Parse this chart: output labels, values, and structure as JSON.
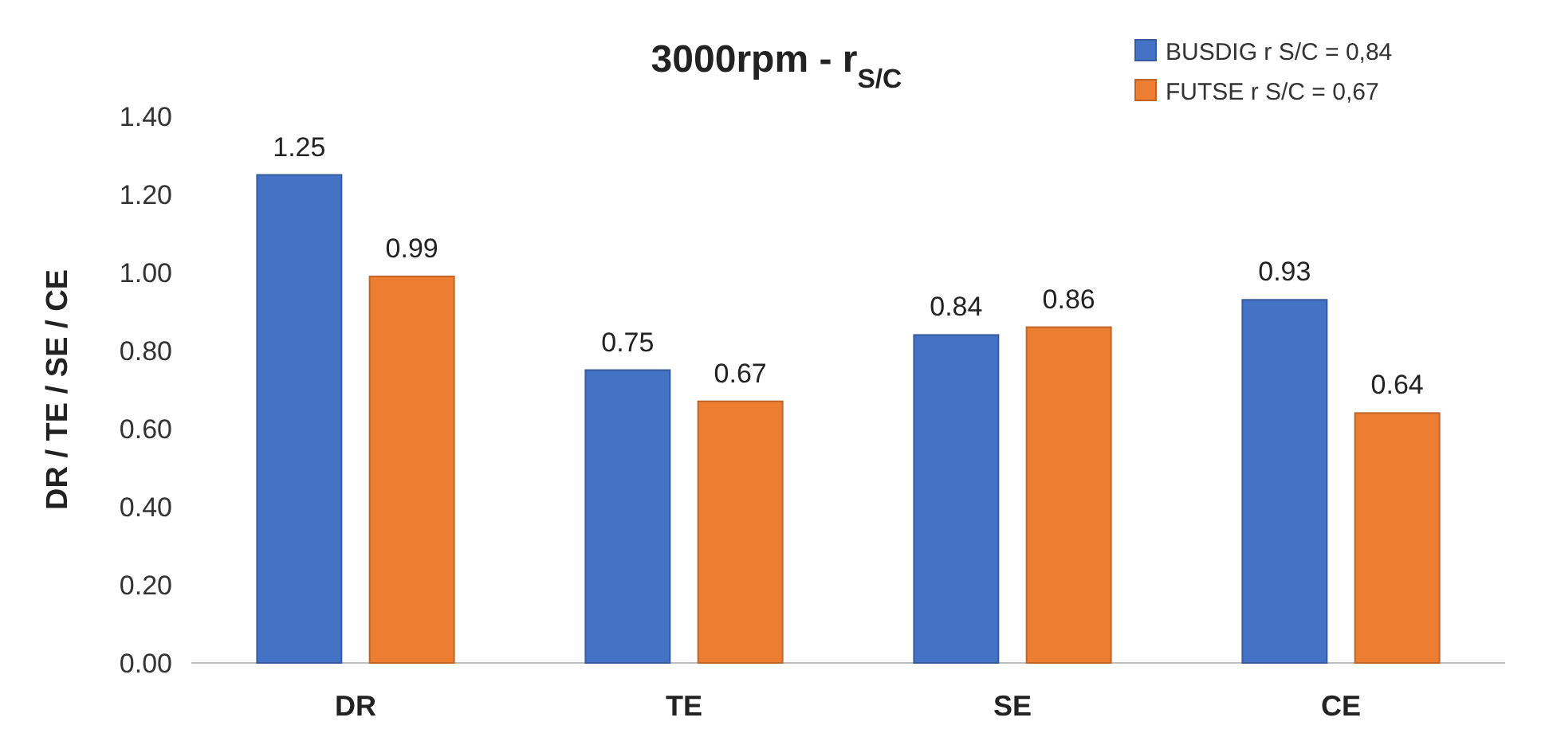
{
  "chart_data": {
    "type": "bar",
    "title": "3000rpm - r$_{S/C}$",
    "ylabel": "DR / TE / SE / CE",
    "categories": [
      "DR",
      "TE",
      "SE",
      "CE"
    ],
    "series": [
      {
        "name": "BUSDIG r S/C = 0,84",
        "color": "#4472c4",
        "values": [
          1.25,
          0.75,
          0.84,
          0.93
        ]
      },
      {
        "name": "FUTSE r S/C = 0,67",
        "color": "#ed7d31",
        "values": [
          0.99,
          0.67,
          0.86,
          0.64
        ]
      }
    ],
    "ylim": [
      0,
      1.4
    ],
    "yticks": [
      {
        "value": 0,
        "label": "0.00"
      },
      {
        "value": 0.2,
        "label": "0.20"
      },
      {
        "value": 0.4,
        "label": "0.40"
      },
      {
        "value": 0.6,
        "label": "0.60"
      },
      {
        "value": 0.8,
        "label": "0.80"
      },
      {
        "value": 1,
        "label": "1.00"
      },
      {
        "value": 1.2,
        "label": "1.20"
      },
      {
        "value": 1.4,
        "label": "1.40"
      }
    ],
    "data_labels": true,
    "legend": "top right",
    "grid": false
  }
}
